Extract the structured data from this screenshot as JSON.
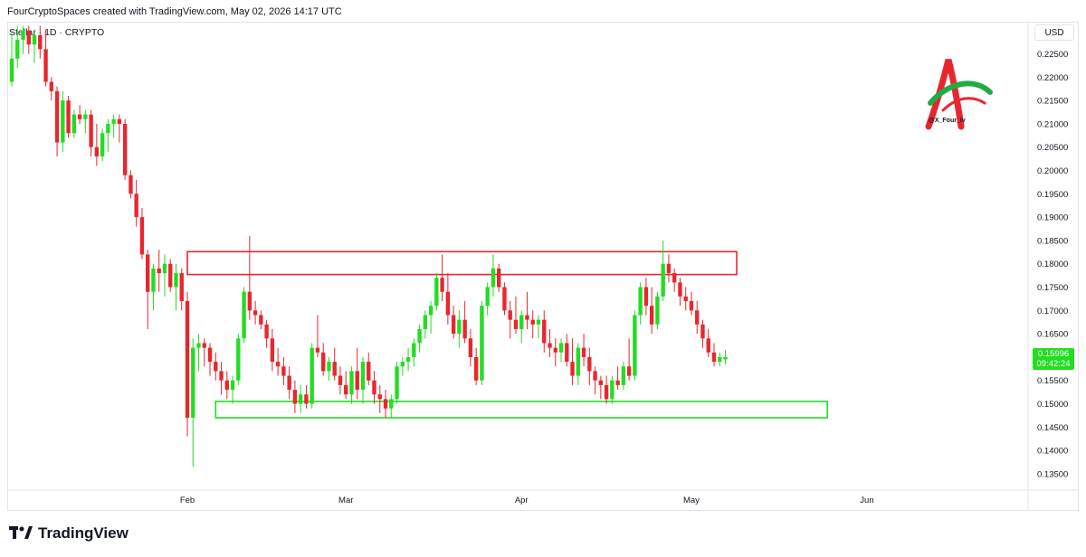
{
  "header": {
    "credit": "FourCryptoSpaces created with TradingView.com, May 02, 2026 14:17 UTC"
  },
  "symbol": {
    "line": "Stellar · 1D · CRYPTO"
  },
  "axis": {
    "currency": "USD"
  },
  "current_price": {
    "value": "0.15996",
    "countdown": "09:42:24"
  },
  "watermark": {
    "handle": "@X_Four_iv"
  },
  "footer": {
    "brand": "TradingView"
  },
  "colors": {
    "up": "#22dd22",
    "down": "#e8262e",
    "resistance": "#e8262e",
    "support": "#22dd22"
  },
  "chart_data": {
    "type": "candlestick",
    "y_axis": {
      "range": [
        0.1315,
        0.2315
      ],
      "ticks": [
        "0.13500",
        "0.14000",
        "0.14500",
        "0.15000",
        "0.15500",
        "0.16000",
        "0.16500",
        "0.17000",
        "0.17500",
        "0.18000",
        "0.18500",
        "0.19000",
        "0.19500",
        "0.20000",
        "0.20500",
        "0.21000",
        "0.21500",
        "0.22000",
        "0.22500"
      ]
    },
    "x_axis": {
      "start": "2026-01-01",
      "end": "2026-06-05",
      "months": [
        {
          "label": "Feb",
          "date": "2026-02-01"
        },
        {
          "label": "Mar",
          "date": "2026-03-01"
        },
        {
          "label": "Apr",
          "date": "2026-04-01"
        },
        {
          "label": "May",
          "date": "2026-05-01"
        },
        {
          "label": "Jun",
          "date": "2026-06-01"
        }
      ]
    },
    "zones": [
      {
        "name": "resistance",
        "from": "2026-02-01",
        "to": "2026-05-09",
        "low": 0.1777,
        "high": 0.1826
      },
      {
        "name": "support",
        "from": "2026-02-06",
        "to": "2026-05-25",
        "low": 0.147,
        "high": 0.1505
      }
    ],
    "candles": [
      {
        "date": "2026-01-01",
        "o": 0.219,
        "h": 0.23,
        "l": 0.218,
        "c": 0.224
      },
      {
        "date": "2026-01-02",
        "o": 0.224,
        "h": 0.231,
        "l": 0.222,
        "c": 0.228
      },
      {
        "date": "2026-01-03",
        "o": 0.228,
        "h": 0.231,
        "l": 0.225,
        "c": 0.23
      },
      {
        "date": "2026-01-04",
        "o": 0.23,
        "h": 0.231,
        "l": 0.225,
        "c": 0.227
      },
      {
        "date": "2026-01-05",
        "o": 0.227,
        "h": 0.23,
        "l": 0.223,
        "c": 0.229
      },
      {
        "date": "2026-01-06",
        "o": 0.229,
        "h": 0.231,
        "l": 0.224,
        "c": 0.226
      },
      {
        "date": "2026-01-07",
        "o": 0.226,
        "h": 0.23,
        "l": 0.218,
        "c": 0.219
      },
      {
        "date": "2026-01-08",
        "o": 0.219,
        "h": 0.22,
        "l": 0.215,
        "c": 0.217
      },
      {
        "date": "2026-01-09",
        "o": 0.217,
        "h": 0.218,
        "l": 0.203,
        "c": 0.206
      },
      {
        "date": "2026-01-10",
        "o": 0.206,
        "h": 0.217,
        "l": 0.204,
        "c": 0.215
      },
      {
        "date": "2026-01-11",
        "o": 0.215,
        "h": 0.216,
        "l": 0.207,
        "c": 0.208
      },
      {
        "date": "2026-01-12",
        "o": 0.208,
        "h": 0.213,
        "l": 0.207,
        "c": 0.212
      },
      {
        "date": "2026-01-13",
        "o": 0.212,
        "h": 0.214,
        "l": 0.21,
        "c": 0.211
      },
      {
        "date": "2026-01-14",
        "o": 0.211,
        "h": 0.213,
        "l": 0.208,
        "c": 0.212
      },
      {
        "date": "2026-01-15",
        "o": 0.212,
        "h": 0.213,
        "l": 0.203,
        "c": 0.205
      },
      {
        "date": "2026-01-16",
        "o": 0.205,
        "h": 0.21,
        "l": 0.201,
        "c": 0.203
      },
      {
        "date": "2026-01-17",
        "o": 0.203,
        "h": 0.209,
        "l": 0.202,
        "c": 0.208
      },
      {
        "date": "2026-01-18",
        "o": 0.208,
        "h": 0.211,
        "l": 0.204,
        "c": 0.21
      },
      {
        "date": "2026-01-19",
        "o": 0.21,
        "h": 0.212,
        "l": 0.207,
        "c": 0.211
      },
      {
        "date": "2026-01-20",
        "o": 0.211,
        "h": 0.212,
        "l": 0.206,
        "c": 0.21
      },
      {
        "date": "2026-01-21",
        "o": 0.21,
        "h": 0.211,
        "l": 0.198,
        "c": 0.199
      },
      {
        "date": "2026-01-22",
        "o": 0.199,
        "h": 0.2,
        "l": 0.194,
        "c": 0.195
      },
      {
        "date": "2026-01-23",
        "o": 0.195,
        "h": 0.198,
        "l": 0.188,
        "c": 0.19
      },
      {
        "date": "2026-01-24",
        "o": 0.19,
        "h": 0.192,
        "l": 0.181,
        "c": 0.182
      },
      {
        "date": "2026-01-25",
        "o": 0.182,
        "h": 0.183,
        "l": 0.166,
        "c": 0.174
      },
      {
        "date": "2026-01-26",
        "o": 0.174,
        "h": 0.18,
        "l": 0.17,
        "c": 0.179
      },
      {
        "date": "2026-01-27",
        "o": 0.179,
        "h": 0.183,
        "l": 0.174,
        "c": 0.178
      },
      {
        "date": "2026-01-28",
        "o": 0.178,
        "h": 0.182,
        "l": 0.173,
        "c": 0.18
      },
      {
        "date": "2026-01-29",
        "o": 0.18,
        "h": 0.181,
        "l": 0.174,
        "c": 0.175
      },
      {
        "date": "2026-01-30",
        "o": 0.175,
        "h": 0.18,
        "l": 0.17,
        "c": 0.178
      },
      {
        "date": "2026-01-31",
        "o": 0.178,
        "h": 0.179,
        "l": 0.17,
        "c": 0.172
      },
      {
        "date": "2026-02-01",
        "o": 0.172,
        "h": 0.174,
        "l": 0.143,
        "c": 0.147
      },
      {
        "date": "2026-02-02",
        "o": 0.147,
        "h": 0.164,
        "l": 0.1365,
        "c": 0.162
      },
      {
        "date": "2026-02-03",
        "o": 0.162,
        "h": 0.165,
        "l": 0.157,
        "c": 0.163
      },
      {
        "date": "2026-02-04",
        "o": 0.163,
        "h": 0.164,
        "l": 0.158,
        "c": 0.162
      },
      {
        "date": "2026-02-05",
        "o": 0.162,
        "h": 0.163,
        "l": 0.156,
        "c": 0.159
      },
      {
        "date": "2026-02-06",
        "o": 0.159,
        "h": 0.161,
        "l": 0.155,
        "c": 0.157
      },
      {
        "date": "2026-02-07",
        "o": 0.157,
        "h": 0.159,
        "l": 0.152,
        "c": 0.155
      },
      {
        "date": "2026-02-08",
        "o": 0.155,
        "h": 0.157,
        "l": 0.151,
        "c": 0.153
      },
      {
        "date": "2026-02-09",
        "o": 0.153,
        "h": 0.156,
        "l": 0.15,
        "c": 0.155
      },
      {
        "date": "2026-02-10",
        "o": 0.155,
        "h": 0.165,
        "l": 0.154,
        "c": 0.164
      },
      {
        "date": "2026-02-11",
        "o": 0.164,
        "h": 0.175,
        "l": 0.163,
        "c": 0.174
      },
      {
        "date": "2026-02-12",
        "o": 0.174,
        "h": 0.186,
        "l": 0.168,
        "c": 0.17
      },
      {
        "date": "2026-02-13",
        "o": 0.17,
        "h": 0.172,
        "l": 0.167,
        "c": 0.169
      },
      {
        "date": "2026-02-14",
        "o": 0.169,
        "h": 0.17,
        "l": 0.166,
        "c": 0.167
      },
      {
        "date": "2026-02-15",
        "o": 0.167,
        "h": 0.168,
        "l": 0.162,
        "c": 0.164
      },
      {
        "date": "2026-02-16",
        "o": 0.164,
        "h": 0.166,
        "l": 0.157,
        "c": 0.159
      },
      {
        "date": "2026-02-17",
        "o": 0.159,
        "h": 0.162,
        "l": 0.156,
        "c": 0.158
      },
      {
        "date": "2026-02-18",
        "o": 0.158,
        "h": 0.16,
        "l": 0.154,
        "c": 0.156
      },
      {
        "date": "2026-02-19",
        "o": 0.156,
        "h": 0.158,
        "l": 0.151,
        "c": 0.153
      },
      {
        "date": "2026-02-20",
        "o": 0.153,
        "h": 0.155,
        "l": 0.148,
        "c": 0.15
      },
      {
        "date": "2026-02-21",
        "o": 0.15,
        "h": 0.154,
        "l": 0.148,
        "c": 0.152
      },
      {
        "date": "2026-02-22",
        "o": 0.152,
        "h": 0.154,
        "l": 0.149,
        "c": 0.15
      },
      {
        "date": "2026-02-23",
        "o": 0.15,
        "h": 0.163,
        "l": 0.149,
        "c": 0.162
      },
      {
        "date": "2026-02-24",
        "o": 0.162,
        "h": 0.169,
        "l": 0.16,
        "c": 0.161
      },
      {
        "date": "2026-02-25",
        "o": 0.161,
        "h": 0.163,
        "l": 0.156,
        "c": 0.157
      },
      {
        "date": "2026-02-26",
        "o": 0.157,
        "h": 0.16,
        "l": 0.155,
        "c": 0.159
      },
      {
        "date": "2026-02-27",
        "o": 0.159,
        "h": 0.162,
        "l": 0.155,
        "c": 0.156
      },
      {
        "date": "2026-02-28",
        "o": 0.156,
        "h": 0.158,
        "l": 0.152,
        "c": 0.154
      },
      {
        "date": "2026-03-01",
        "o": 0.154,
        "h": 0.157,
        "l": 0.151,
        "c": 0.152
      },
      {
        "date": "2026-03-02",
        "o": 0.152,
        "h": 0.158,
        "l": 0.15,
        "c": 0.157
      },
      {
        "date": "2026-03-03",
        "o": 0.157,
        "h": 0.162,
        "l": 0.151,
        "c": 0.153
      },
      {
        "date": "2026-03-04",
        "o": 0.153,
        "h": 0.16,
        "l": 0.15,
        "c": 0.159
      },
      {
        "date": "2026-03-05",
        "o": 0.159,
        "h": 0.161,
        "l": 0.154,
        "c": 0.155
      },
      {
        "date": "2026-03-06",
        "o": 0.155,
        "h": 0.157,
        "l": 0.15,
        "c": 0.152
      },
      {
        "date": "2026-03-07",
        "o": 0.152,
        "h": 0.154,
        "l": 0.148,
        "c": 0.151
      },
      {
        "date": "2026-03-08",
        "o": 0.151,
        "h": 0.153,
        "l": 0.147,
        "c": 0.149
      },
      {
        "date": "2026-03-09",
        "o": 0.149,
        "h": 0.152,
        "l": 0.147,
        "c": 0.151
      },
      {
        "date": "2026-03-10",
        "o": 0.151,
        "h": 0.159,
        "l": 0.15,
        "c": 0.158
      },
      {
        "date": "2026-03-11",
        "o": 0.158,
        "h": 0.16,
        "l": 0.156,
        "c": 0.159
      },
      {
        "date": "2026-03-12",
        "o": 0.159,
        "h": 0.162,
        "l": 0.157,
        "c": 0.16
      },
      {
        "date": "2026-03-13",
        "o": 0.16,
        "h": 0.164,
        "l": 0.158,
        "c": 0.163
      },
      {
        "date": "2026-03-14",
        "o": 0.163,
        "h": 0.167,
        "l": 0.161,
        "c": 0.166
      },
      {
        "date": "2026-03-15",
        "o": 0.166,
        "h": 0.17,
        "l": 0.164,
        "c": 0.169
      },
      {
        "date": "2026-03-16",
        "o": 0.169,
        "h": 0.172,
        "l": 0.165,
        "c": 0.171
      },
      {
        "date": "2026-03-17",
        "o": 0.171,
        "h": 0.178,
        "l": 0.17,
        "c": 0.177
      },
      {
        "date": "2026-03-18",
        "o": 0.177,
        "h": 0.182,
        "l": 0.172,
        "c": 0.174
      },
      {
        "date": "2026-03-19",
        "o": 0.174,
        "h": 0.178,
        "l": 0.167,
        "c": 0.169
      },
      {
        "date": "2026-03-20",
        "o": 0.169,
        "h": 0.171,
        "l": 0.164,
        "c": 0.165
      },
      {
        "date": "2026-03-21",
        "o": 0.165,
        "h": 0.17,
        "l": 0.162,
        "c": 0.168
      },
      {
        "date": "2026-03-22",
        "o": 0.168,
        "h": 0.172,
        "l": 0.163,
        "c": 0.164
      },
      {
        "date": "2026-03-23",
        "o": 0.164,
        "h": 0.166,
        "l": 0.158,
        "c": 0.16
      },
      {
        "date": "2026-03-24",
        "o": 0.16,
        "h": 0.162,
        "l": 0.154,
        "c": 0.155
      },
      {
        "date": "2026-03-25",
        "o": 0.155,
        "h": 0.172,
        "l": 0.154,
        "c": 0.171
      },
      {
        "date": "2026-03-26",
        "o": 0.171,
        "h": 0.176,
        "l": 0.169,
        "c": 0.175
      },
      {
        "date": "2026-03-27",
        "o": 0.175,
        "h": 0.182,
        "l": 0.173,
        "c": 0.179
      },
      {
        "date": "2026-03-28",
        "o": 0.179,
        "h": 0.18,
        "l": 0.174,
        "c": 0.175
      },
      {
        "date": "2026-03-29",
        "o": 0.175,
        "h": 0.176,
        "l": 0.169,
        "c": 0.17
      },
      {
        "date": "2026-03-30",
        "o": 0.17,
        "h": 0.172,
        "l": 0.164,
        "c": 0.168
      },
      {
        "date": "2026-03-31",
        "o": 0.168,
        "h": 0.173,
        "l": 0.165,
        "c": 0.166
      },
      {
        "date": "2026-04-01",
        "o": 0.166,
        "h": 0.17,
        "l": 0.163,
        "c": 0.169
      },
      {
        "date": "2026-04-02",
        "o": 0.169,
        "h": 0.174,
        "l": 0.166,
        "c": 0.168
      },
      {
        "date": "2026-04-03",
        "o": 0.168,
        "h": 0.17,
        "l": 0.164,
        "c": 0.167
      },
      {
        "date": "2026-04-04",
        "o": 0.167,
        "h": 0.169,
        "l": 0.164,
        "c": 0.168
      },
      {
        "date": "2026-04-05",
        "o": 0.168,
        "h": 0.17,
        "l": 0.161,
        "c": 0.163
      },
      {
        "date": "2026-04-06",
        "o": 0.163,
        "h": 0.166,
        "l": 0.16,
        "c": 0.162
      },
      {
        "date": "2026-04-07",
        "o": 0.162,
        "h": 0.164,
        "l": 0.158,
        "c": 0.161
      },
      {
        "date": "2026-04-08",
        "o": 0.161,
        "h": 0.164,
        "l": 0.159,
        "c": 0.163
      },
      {
        "date": "2026-04-09",
        "o": 0.163,
        "h": 0.165,
        "l": 0.158,
        "c": 0.159
      },
      {
        "date": "2026-04-10",
        "o": 0.159,
        "h": 0.164,
        "l": 0.154,
        "c": 0.156
      },
      {
        "date": "2026-04-11",
        "o": 0.156,
        "h": 0.163,
        "l": 0.154,
        "c": 0.162
      },
      {
        "date": "2026-04-12",
        "o": 0.162,
        "h": 0.165,
        "l": 0.158,
        "c": 0.16
      },
      {
        "date": "2026-04-13",
        "o": 0.16,
        "h": 0.162,
        "l": 0.154,
        "c": 0.157
      },
      {
        "date": "2026-04-14",
        "o": 0.157,
        "h": 0.158,
        "l": 0.152,
        "c": 0.155
      },
      {
        "date": "2026-04-15",
        "o": 0.155,
        "h": 0.156,
        "l": 0.151,
        "c": 0.154
      },
      {
        "date": "2026-04-16",
        "o": 0.154,
        "h": 0.156,
        "l": 0.15,
        "c": 0.151
      },
      {
        "date": "2026-04-17",
        "o": 0.151,
        "h": 0.156,
        "l": 0.15,
        "c": 0.155
      },
      {
        "date": "2026-04-18",
        "o": 0.155,
        "h": 0.158,
        "l": 0.153,
        "c": 0.154
      },
      {
        "date": "2026-04-19",
        "o": 0.154,
        "h": 0.159,
        "l": 0.153,
        "c": 0.158
      },
      {
        "date": "2026-04-20",
        "o": 0.158,
        "h": 0.164,
        "l": 0.155,
        "c": 0.156
      },
      {
        "date": "2026-04-21",
        "o": 0.156,
        "h": 0.17,
        "l": 0.155,
        "c": 0.169
      },
      {
        "date": "2026-04-22",
        "o": 0.169,
        "h": 0.176,
        "l": 0.167,
        "c": 0.175
      },
      {
        "date": "2026-04-23",
        "o": 0.175,
        "h": 0.177,
        "l": 0.169,
        "c": 0.171
      },
      {
        "date": "2026-04-24",
        "o": 0.171,
        "h": 0.175,
        "l": 0.165,
        "c": 0.167
      },
      {
        "date": "2026-04-25",
        "o": 0.167,
        "h": 0.174,
        "l": 0.166,
        "c": 0.173
      },
      {
        "date": "2026-04-26",
        "o": 0.173,
        "h": 0.185,
        "l": 0.172,
        "c": 0.18
      },
      {
        "date": "2026-04-27",
        "o": 0.18,
        "h": 0.182,
        "l": 0.176,
        "c": 0.178
      },
      {
        "date": "2026-04-28",
        "o": 0.178,
        "h": 0.179,
        "l": 0.174,
        "c": 0.176
      },
      {
        "date": "2026-04-29",
        "o": 0.176,
        "h": 0.177,
        "l": 0.171,
        "c": 0.173
      },
      {
        "date": "2026-04-30",
        "o": 0.173,
        "h": 0.175,
        "l": 0.17,
        "c": 0.172
      },
      {
        "date": "2026-05-01",
        "o": 0.172,
        "h": 0.174,
        "l": 0.169,
        "c": 0.17
      },
      {
        "date": "2026-05-02",
        "o": 0.17,
        "h": 0.172,
        "l": 0.165,
        "c": 0.167
      },
      {
        "date": "2026-05-03",
        "o": 0.167,
        "h": 0.168,
        "l": 0.162,
        "c": 0.164
      },
      {
        "date": "2026-05-04",
        "o": 0.164,
        "h": 0.166,
        "l": 0.16,
        "c": 0.161
      },
      {
        "date": "2026-05-05",
        "o": 0.161,
        "h": 0.163,
        "l": 0.158,
        "c": 0.159
      },
      {
        "date": "2026-05-06",
        "o": 0.159,
        "h": 0.161,
        "l": 0.158,
        "c": 0.16
      },
      {
        "date": "2026-05-07",
        "o": 0.1595,
        "h": 0.1615,
        "l": 0.1585,
        "c": 0.16
      }
    ]
  }
}
